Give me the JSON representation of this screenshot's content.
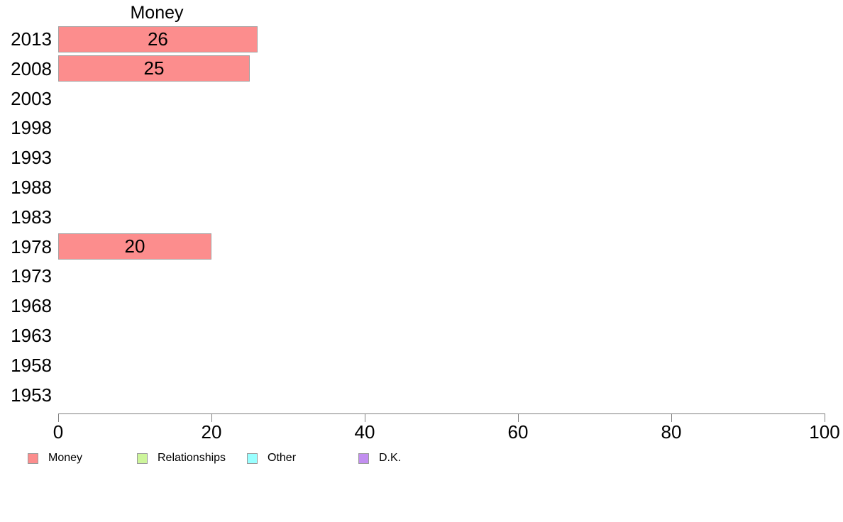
{
  "chart_data": {
    "type": "bar",
    "orientation": "horizontal",
    "title": "Money",
    "categories": [
      "2013",
      "2008",
      "2003",
      "1998",
      "1993",
      "1988",
      "1983",
      "1978",
      "1973",
      "1968",
      "1963",
      "1958",
      "1953"
    ],
    "series": [
      {
        "name": "Money",
        "color": "#FC8D8D",
        "values": [
          26,
          25,
          null,
          null,
          null,
          null,
          null,
          20,
          null,
          null,
          null,
          null,
          null
        ]
      },
      {
        "name": "Relationships",
        "color": "#CDF59B",
        "values": [
          null,
          null,
          null,
          null,
          null,
          null,
          null,
          null,
          null,
          null,
          null,
          null,
          null
        ]
      },
      {
        "name": "Other",
        "color": "#99FFFF",
        "values": [
          null,
          null,
          null,
          null,
          null,
          null,
          null,
          null,
          null,
          null,
          null,
          null,
          null
        ]
      },
      {
        "name": "D.K.",
        "color": "#C28EF0",
        "values": [
          null,
          null,
          null,
          null,
          null,
          null,
          null,
          null,
          null,
          null,
          null,
          null,
          null
        ]
      }
    ],
    "xlim": [
      0,
      100
    ],
    "xticks": [
      0,
      20,
      40,
      60,
      80,
      100
    ],
    "bar_value_labels": true,
    "grid": false,
    "legend": {
      "position": "bottom",
      "entries": [
        {
          "label": "Money",
          "color": "#FC8D8D"
        },
        {
          "label": "Relationships",
          "color": "#CDF59B"
        },
        {
          "label": "Other",
          "color": "#99FFFF"
        },
        {
          "label": "D.K.",
          "color": "#C28EF0"
        }
      ]
    },
    "colors": {
      "bar_border": "#a7a0a0",
      "axis": "#808080",
      "text": "#000000",
      "background": "#ffffff"
    }
  }
}
